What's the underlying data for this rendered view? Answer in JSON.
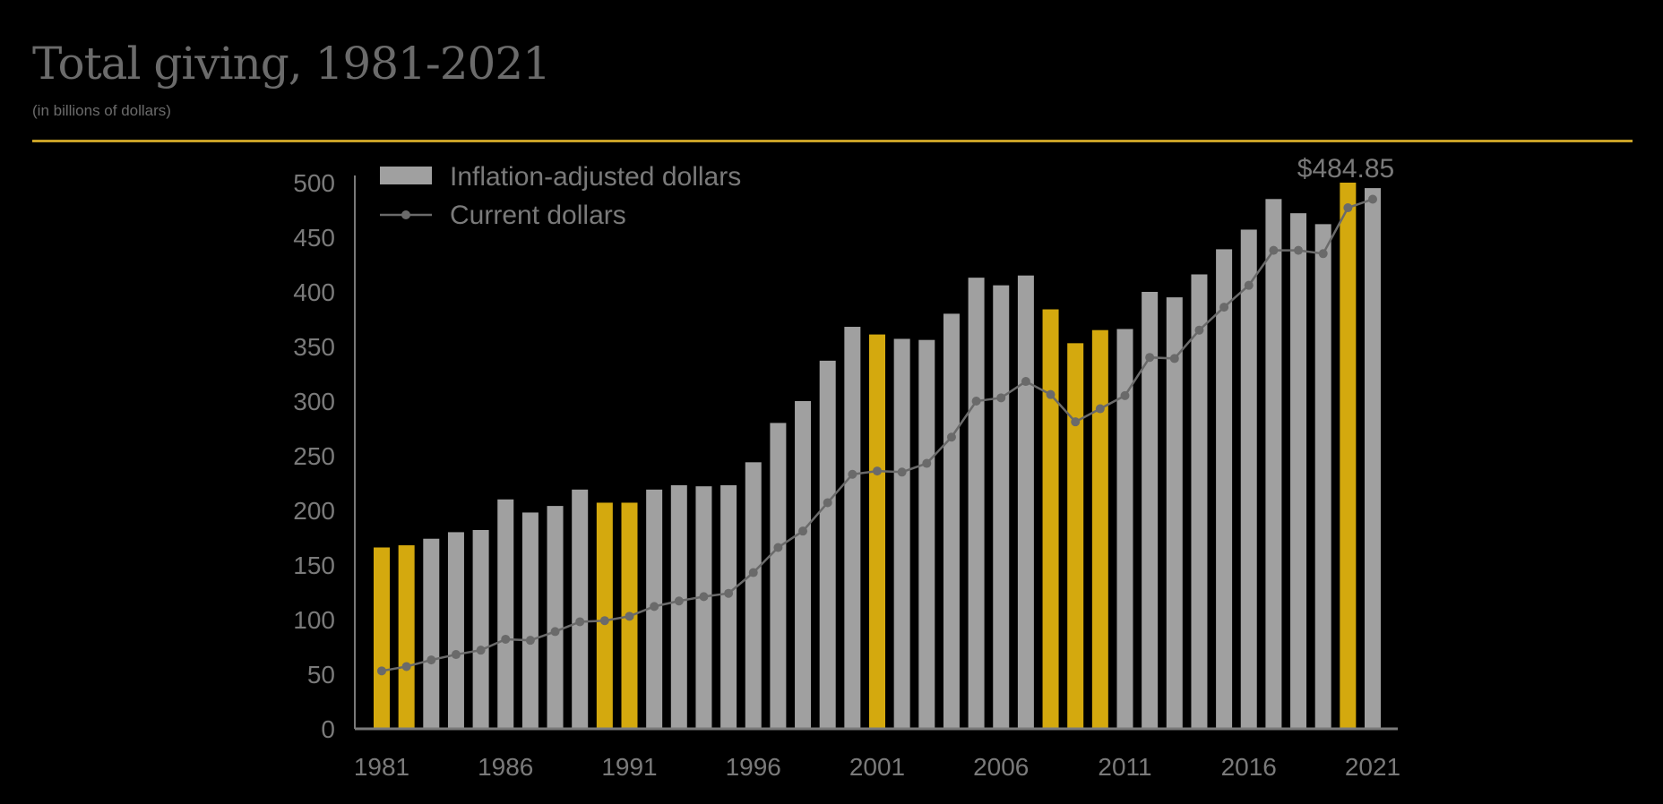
{
  "header": {
    "title": "Total giving, 1981-2021",
    "subtitle": "(in billions of dollars)"
  },
  "colors": {
    "bar": "#a0a0a0",
    "highlight": "#d4a90e",
    "line": "#6a6a6a",
    "axis": "#7a7a7a",
    "rule": "#c9a227"
  },
  "chart_data": {
    "type": "bar",
    "ylim": [
      0,
      500
    ],
    "yticks": [
      0,
      50,
      100,
      150,
      200,
      250,
      300,
      350,
      400,
      450,
      500
    ],
    "xtick_labels": [
      "1981",
      "1986",
      "1991",
      "1996",
      "2001",
      "2006",
      "2011",
      "2016",
      "2021"
    ],
    "legend": {
      "placement": "top-left",
      "bar_label": "Inflation-adjusted dollars",
      "line_label": "Current dollars"
    },
    "annotation": {
      "text": "$484.85",
      "year": 2021
    },
    "years": [
      1981,
      1982,
      1983,
      1984,
      1985,
      1986,
      1987,
      1988,
      1989,
      1990,
      1991,
      1992,
      1993,
      1994,
      1995,
      1996,
      1997,
      1998,
      1999,
      2000,
      2001,
      2002,
      2003,
      2004,
      2005,
      2006,
      2007,
      2008,
      2009,
      2010,
      2011,
      2012,
      2013,
      2014,
      2015,
      2016,
      2017,
      2018,
      2019,
      2020,
      2021
    ],
    "highlighted_years": [
      1981,
      1982,
      1990,
      1991,
      2001,
      2008,
      2009,
      2010,
      2020
    ],
    "series": [
      {
        "name": "Inflation-adjusted dollars",
        "type": "bar",
        "values": [
          166,
          168,
          174,
          180,
          182,
          210,
          198,
          204,
          219,
          207,
          207,
          219,
          223,
          222,
          223,
          244,
          280,
          300,
          337,
          368,
          361,
          357,
          356,
          380,
          413,
          406,
          415,
          384,
          353,
          365,
          366,
          400,
          395,
          416,
          439,
          457,
          485,
          472,
          462,
          500,
          495
        ]
      },
      {
        "name": "Current dollars",
        "type": "line",
        "values": [
          53,
          57,
          63,
          68,
          72,
          82,
          81,
          89,
          98,
          99,
          103,
          112,
          117,
          121,
          124,
          143,
          166,
          181,
          207,
          233,
          236,
          235,
          243,
          267,
          300,
          303,
          318,
          306,
          281,
          293,
          305,
          340,
          339,
          365,
          386,
          406,
          438,
          438,
          435,
          477,
          484.85
        ]
      }
    ]
  }
}
